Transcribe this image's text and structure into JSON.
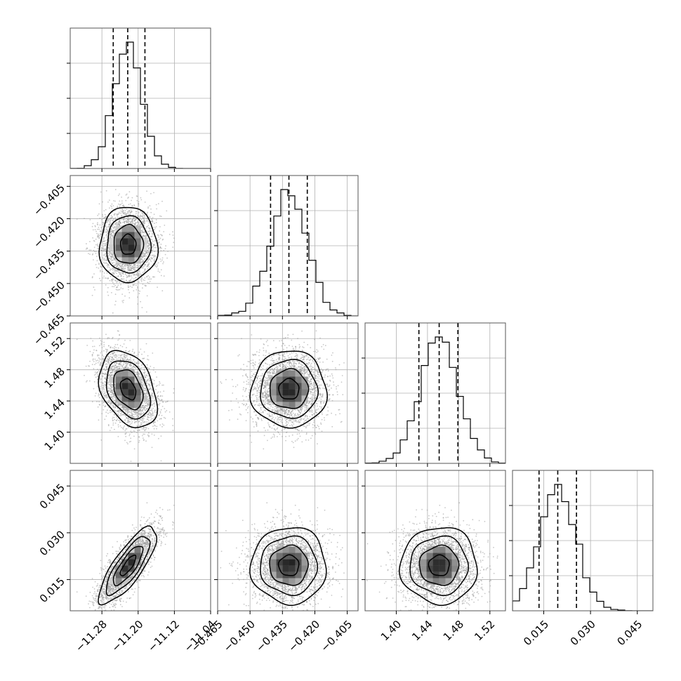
{
  "chart_data": {
    "type": "corner",
    "description_note": "",
    "parameters": [
      {
        "range": [
          -11.35,
          -11.04
        ],
        "ticks": [
          -11.28,
          -11.2,
          -11.12,
          -11.04
        ],
        "tick_labels": [
          "−11.28",
          "−11.20",
          "−11.12",
          "−11.04"
        ],
        "quantiles": [
          -11.255,
          -11.223,
          -11.185
        ],
        "mean": -11.222,
        "sd": 0.031
      },
      {
        "range": [
          -0.465,
          -0.4
        ],
        "ticks": [
          -0.465,
          -0.45,
          -0.435,
          -0.42,
          -0.405
        ],
        "tick_labels": [
          "−0.465",
          "−0.450",
          "−0.435",
          "−0.420",
          "−0.405"
        ],
        "quantiles": [
          -0.4405,
          -0.432,
          -0.4235
        ],
        "mean": -0.432,
        "sd": 0.0085
      },
      {
        "range": [
          1.36,
          1.54
        ],
        "ticks": [
          1.4,
          1.44,
          1.48,
          1.52
        ],
        "tick_labels": [
          "1.40",
          "1.44",
          "1.48",
          "1.52"
        ],
        "quantiles": [
          1.429,
          1.455,
          1.479
        ],
        "mean": 1.455,
        "sd": 0.024
      },
      {
        "range": [
          0.005,
          0.05
        ],
        "ticks": [
          0.015,
          0.03,
          0.045
        ],
        "tick_labels": [
          "0.015",
          "0.030",
          "0.045"
        ],
        "quantiles": [
          0.0135,
          0.0195,
          0.0255
        ],
        "mean": 0.0195,
        "sd": 0.006
      }
    ],
    "correlations": [
      [
        1.0,
        0.0,
        -0.35,
        0.8
      ],
      [
        0.0,
        1.0,
        0.0,
        0.0
      ],
      [
        -0.35,
        0.0,
        1.0,
        0.0
      ],
      [
        0.8,
        0.0,
        0.0,
        1.0
      ]
    ],
    "diag_grid": {
      "1d": [
        0.5,
        1.0,
        1.5
      ],
      "2d": []
    },
    "grid": true,
    "colors": {
      "scatter": "#9a9a9a",
      "contour": "#000000",
      "frame": "#555555",
      "grid": "#b0b0b0"
    }
  }
}
